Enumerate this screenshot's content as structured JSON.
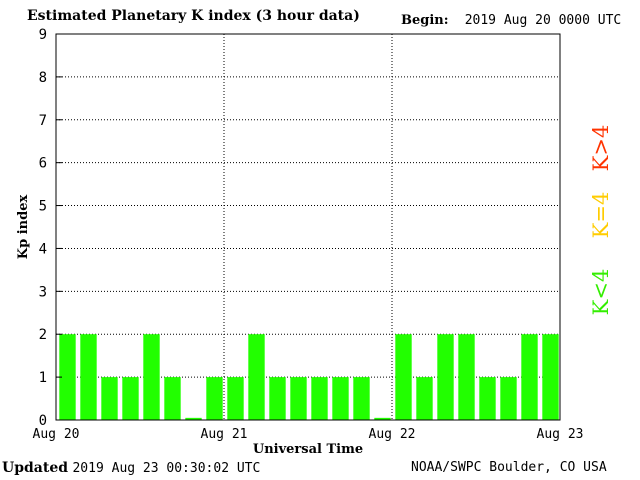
{
  "header": {
    "title": "Estimated Planetary K index (3 hour data)",
    "begin_label": "Begin:",
    "begin_value": "2019 Aug 20 0000 UTC"
  },
  "footer": {
    "updated_label": "Updated",
    "updated_value": "2019 Aug 23 00:30:02 UTC",
    "credit": "NOAA/SWPC Boulder, CO USA"
  },
  "legend": [
    {
      "label": "K>4",
      "color": "#ff3300"
    },
    {
      "label": "K=4",
      "color": "#ffcc00"
    },
    {
      "label": "K<4",
      "color": "#33ee00"
    }
  ],
  "chart_data": {
    "type": "bar",
    "title": "Estimated Planetary K index (3 hour data)",
    "xlabel": "Universal Time",
    "ylabel": "Kp index",
    "ylim": [
      0,
      9
    ],
    "yticks": [
      "0",
      "1",
      "2",
      "3",
      "4",
      "5",
      "6",
      "7",
      "8",
      "9"
    ],
    "xticks": [
      "Aug 20",
      "Aug 21",
      "Aug 22",
      "Aug 23"
    ],
    "grid": true,
    "bar_color": "#22ff00",
    "values": [
      2,
      2,
      1,
      1,
      2,
      1,
      0.05,
      1,
      1,
      2,
      1,
      1,
      1,
      1,
      1,
      0.05,
      2,
      1,
      2,
      2,
      1,
      1,
      2,
      2
    ]
  }
}
